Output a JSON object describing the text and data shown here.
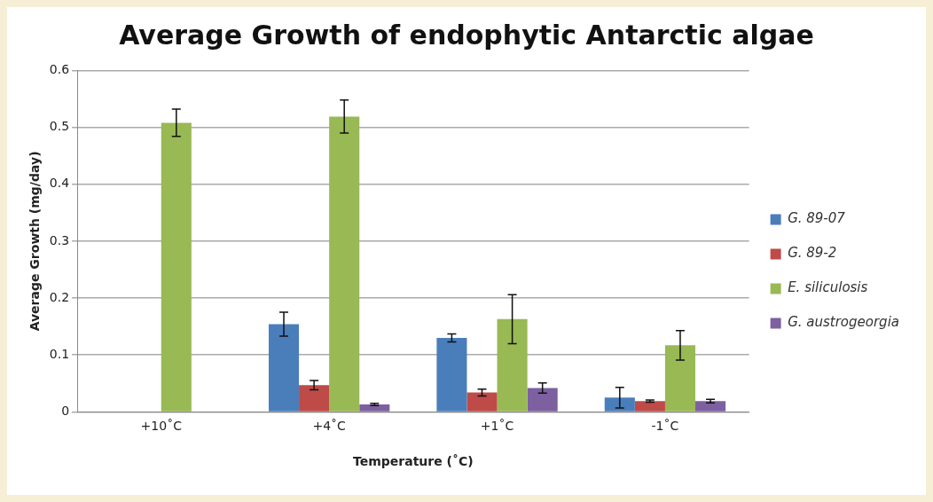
{
  "chart_data": {
    "type": "bar",
    "title": "Average Growth of endophytic Antarctic algae",
    "xlabel": "Temperature (˚C)",
    "ylabel": "Average Growth (mg/day)",
    "categories": [
      "+10˚C",
      "+4˚C",
      "+1˚C",
      "-1˚C"
    ],
    "series": [
      {
        "name": "G. 89-07",
        "color": "#4a7ebb",
        "values": [
          null,
          0.154,
          0.13,
          0.025
        ],
        "errors": [
          null,
          0.021,
          0.007,
          0.018
        ]
      },
      {
        "name": "G. 89-2",
        "color": "#be4b48",
        "values": [
          null,
          0.047,
          0.034,
          0.019
        ],
        "errors": [
          null,
          0.008,
          0.006,
          0.002
        ]
      },
      {
        "name": "E. siliculosis",
        "color": "#98b954",
        "values": [
          0.508,
          0.519,
          0.163,
          0.117
        ],
        "errors": [
          0.024,
          0.029,
          0.043,
          0.026
        ]
      },
      {
        "name": "G. austrogeorgia",
        "color": "#7d60a0",
        "values": [
          null,
          0.013,
          0.042,
          0.019
        ],
        "errors": [
          null,
          0.002,
          0.009,
          0.003
        ]
      }
    ],
    "ylim": [
      0,
      0.6
    ],
    "yticks": [
      0,
      0.1,
      0.2,
      0.3,
      0.4,
      0.5,
      0.6
    ],
    "grid": "y",
    "legend": "right"
  }
}
